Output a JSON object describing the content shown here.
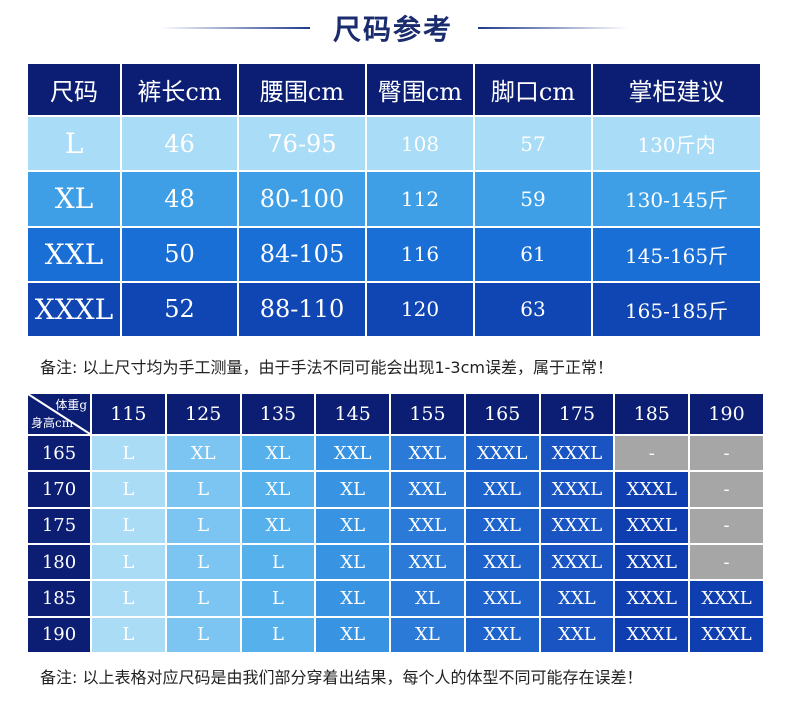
{
  "title": "尺码参考",
  "size_table": {
    "headers": [
      "尺码",
      "裤长cm",
      "腰围cm",
      "臀围cm",
      "脚口cm",
      "掌柜建议"
    ],
    "rows": [
      {
        "size": "L",
        "length": "46",
        "waist": "76-95",
        "hip": "108",
        "hem": "57",
        "advice": "130斤内"
      },
      {
        "size": "XL",
        "length": "48",
        "waist": "80-100",
        "hip": "112",
        "hem": "59",
        "advice": "130-145斤"
      },
      {
        "size": "XXL",
        "length": "50",
        "waist": "84-105",
        "hip": "116",
        "hem": "61",
        "advice": "145-165斤"
      },
      {
        "size": "XXXL",
        "length": "52",
        "waist": "88-110",
        "hip": "120",
        "hem": "63",
        "advice": "165-185斤"
      }
    ]
  },
  "note1": "备注:  以上尺寸均为手工测量，由于手法不同可能会出现1-3cm误差，属于正常！",
  "fit_table": {
    "corner_weight": "体重g",
    "corner_height": "身高cm",
    "weights": [
      "115",
      "125",
      "135",
      "145",
      "155",
      "165",
      "175",
      "185",
      "190"
    ],
    "rows": [
      {
        "height": "165",
        "cells": [
          "L",
          "XL",
          "XL",
          "XXL",
          "XXL",
          "XXXL",
          "XXXL",
          "-",
          "-"
        ]
      },
      {
        "height": "170",
        "cells": [
          "L",
          "L",
          "XL",
          "XL",
          "XXL",
          "XXL",
          "XXXL",
          "XXXL",
          "-"
        ]
      },
      {
        "height": "175",
        "cells": [
          "L",
          "L",
          "XL",
          "XL",
          "XXL",
          "XXL",
          "XXXL",
          "XXXL",
          "-"
        ]
      },
      {
        "height": "180",
        "cells": [
          "L",
          "L",
          "L",
          "XL",
          "XXL",
          "XXL",
          "XXXL",
          "XXXL",
          "-"
        ]
      },
      {
        "height": "185",
        "cells": [
          "L",
          "L",
          "L",
          "XL",
          "XL",
          "XXL",
          "XXL",
          "XXXL",
          "XXXL"
        ]
      },
      {
        "height": "190",
        "cells": [
          "L",
          "L",
          "L",
          "XL",
          "XL",
          "XXL",
          "XXL",
          "XXXL",
          "XXXL"
        ]
      }
    ]
  },
  "note2": "备注:  以上表格对应尺码是由我们部分穿着出结果，每个人的体型不同可能存在误差！"
}
